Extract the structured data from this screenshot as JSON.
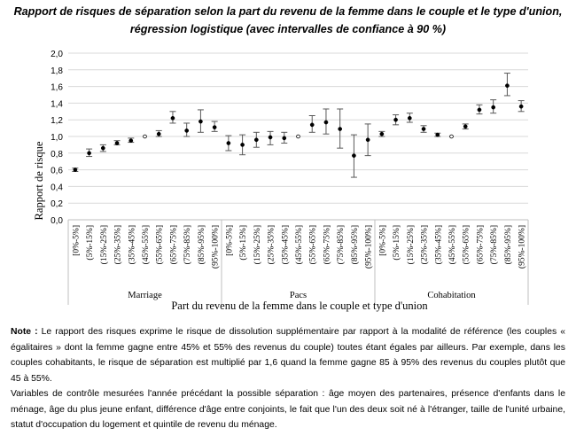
{
  "title": {
    "line1": "Rapport de risques de séparation selon la part du revenu de la femme dans le couple et le type d'union,",
    "line2": "régression logistique (avec intervalles de confiance à 90 %)"
  },
  "chart_data": {
    "type": "scatter",
    "subtype": "point estimates with 90% confidence intervals, grouped categories",
    "ylabel": "Rapport de risque",
    "xlabel": "Part du revenu de la femme dans le couple et type d'union",
    "ylim": [
      0,
      2
    ],
    "ytick_labels": [
      "0,0",
      "0,2",
      "0,4",
      "0,6",
      "0,8",
      "1,0",
      "1,2",
      "1,4",
      "1,6",
      "1,8",
      "2,0"
    ],
    "categories": [
      "[0%-5%]",
      "(5%-15%]",
      "(15%-25%]",
      "(25%-35%]",
      "(35%-45%]",
      "(45%-55%]",
      "(55%-65%]",
      "(65%-75%]",
      "(75%-85%]",
      "(85%-95%]",
      "(95%-100%]"
    ],
    "reference_category": "(45%-55%]",
    "groups": [
      {
        "name": "Marriage",
        "values": [
          0.6,
          0.8,
          0.86,
          0.92,
          0.95,
          1.0,
          1.03,
          1.22,
          1.07,
          1.18,
          1.11
        ],
        "ci_low": [
          0.58,
          0.76,
          0.82,
          0.9,
          0.93,
          1.0,
          1.0,
          1.16,
          1.0,
          1.05,
          1.06
        ],
        "ci_high": [
          0.62,
          0.85,
          0.9,
          0.95,
          0.98,
          1.0,
          1.07,
          1.3,
          1.16,
          1.32,
          1.18
        ]
      },
      {
        "name": "Pacs",
        "values": [
          0.92,
          0.9,
          0.96,
          0.99,
          0.98,
          1.0,
          1.14,
          1.17,
          1.09,
          0.77,
          0.96
        ],
        "ci_low": [
          0.83,
          0.78,
          0.87,
          0.9,
          0.92,
          1.0,
          1.05,
          1.03,
          0.86,
          0.51,
          0.77
        ],
        "ci_high": [
          1.01,
          1.02,
          1.05,
          1.06,
          1.05,
          1.0,
          1.25,
          1.33,
          1.33,
          1.02,
          1.15
        ]
      },
      {
        "name": "Cohabitation",
        "values": [
          1.03,
          1.2,
          1.22,
          1.09,
          1.02,
          1.0,
          1.12,
          1.32,
          1.35,
          1.61,
          1.36
        ],
        "ci_low": [
          1.0,
          1.14,
          1.17,
          1.05,
          1.0,
          1.0,
          1.09,
          1.27,
          1.28,
          1.49,
          1.3
        ],
        "ci_high": [
          1.06,
          1.26,
          1.28,
          1.13,
          1.04,
          1.0,
          1.15,
          1.38,
          1.44,
          1.76,
          1.43
        ]
      }
    ],
    "grid": "horizontal",
    "colors": {
      "gridline": "#d9d9d9",
      "point": "#000000",
      "errorbar": "#595959",
      "axis": "#bfbfbf"
    }
  },
  "note": {
    "label": "Note :",
    "paragraph1": "Le rapport des risques exprime le risque de dissolution supplémentaire par rapport à la modalité de référence (les couples « égalitaires » dont la femme gagne entre 45% et 55% des revenus du couple) toutes étant égales par ailleurs. Par exemple, dans les couples cohabitants, le risque de séparation est multiplié par 1,6 quand la femme gagne 85 à 95% des revenus du couples plutôt que 45 à 55%.",
    "paragraph2": "Variables de contrôle mesurées l'année précédant la possible séparation : âge moyen des partenaires, présence d'enfants dans le ménage, âge du plus jeune enfant, différence d'âge entre conjoints, le fait que l'un des deux soit né à l'étranger, taille de l'unité urbaine, statut d'occupation du logement et quintile de revenu du ménage."
  }
}
